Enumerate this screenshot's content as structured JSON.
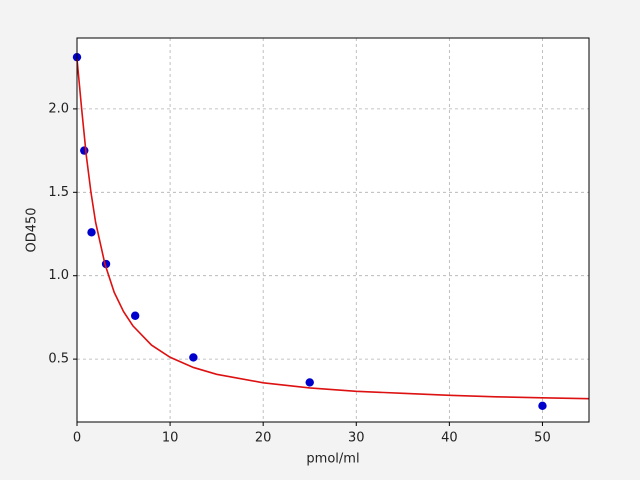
{
  "chart_data": {
    "type": "scatter",
    "xlabel": "pmol/ml",
    "ylabel": "OD450",
    "xlim": [
      0,
      55
    ],
    "ylim": [
      0.123,
      2.425
    ],
    "xticks": [
      0,
      10,
      20,
      30,
      40,
      50
    ],
    "yticks": [
      0.5,
      {
        "value": 1.0,
        "label": "1.0"
      },
      1.5,
      {
        "value": 2.0,
        "label": "2.0"
      }
    ],
    "grid": true,
    "series": [
      {
        "type": "scatter",
        "color": "#0000cc",
        "x": [
          0,
          0.78,
          1.56,
          3.12,
          6.25,
          12.5,
          25,
          50
        ],
        "values": [
          2.31,
          1.75,
          1.26,
          1.07,
          0.76,
          0.51,
          0.36,
          0.22
        ]
      },
      {
        "type": "line",
        "color": "#dd1111",
        "x": [
          0,
          0.5,
          1,
          1.5,
          2,
          3,
          4,
          5,
          6,
          8,
          10,
          12.5,
          15,
          20,
          25,
          30,
          35,
          40,
          45,
          50,
          55
        ],
        "values": [
          2.3,
          2.0,
          1.72,
          1.5,
          1.32,
          1.07,
          0.9,
          0.785,
          0.7,
          0.584,
          0.511,
          0.45,
          0.409,
          0.358,
          0.327,
          0.307,
          0.295,
          0.283,
          0.274,
          0.268,
          0.263
        ]
      }
    ]
  }
}
